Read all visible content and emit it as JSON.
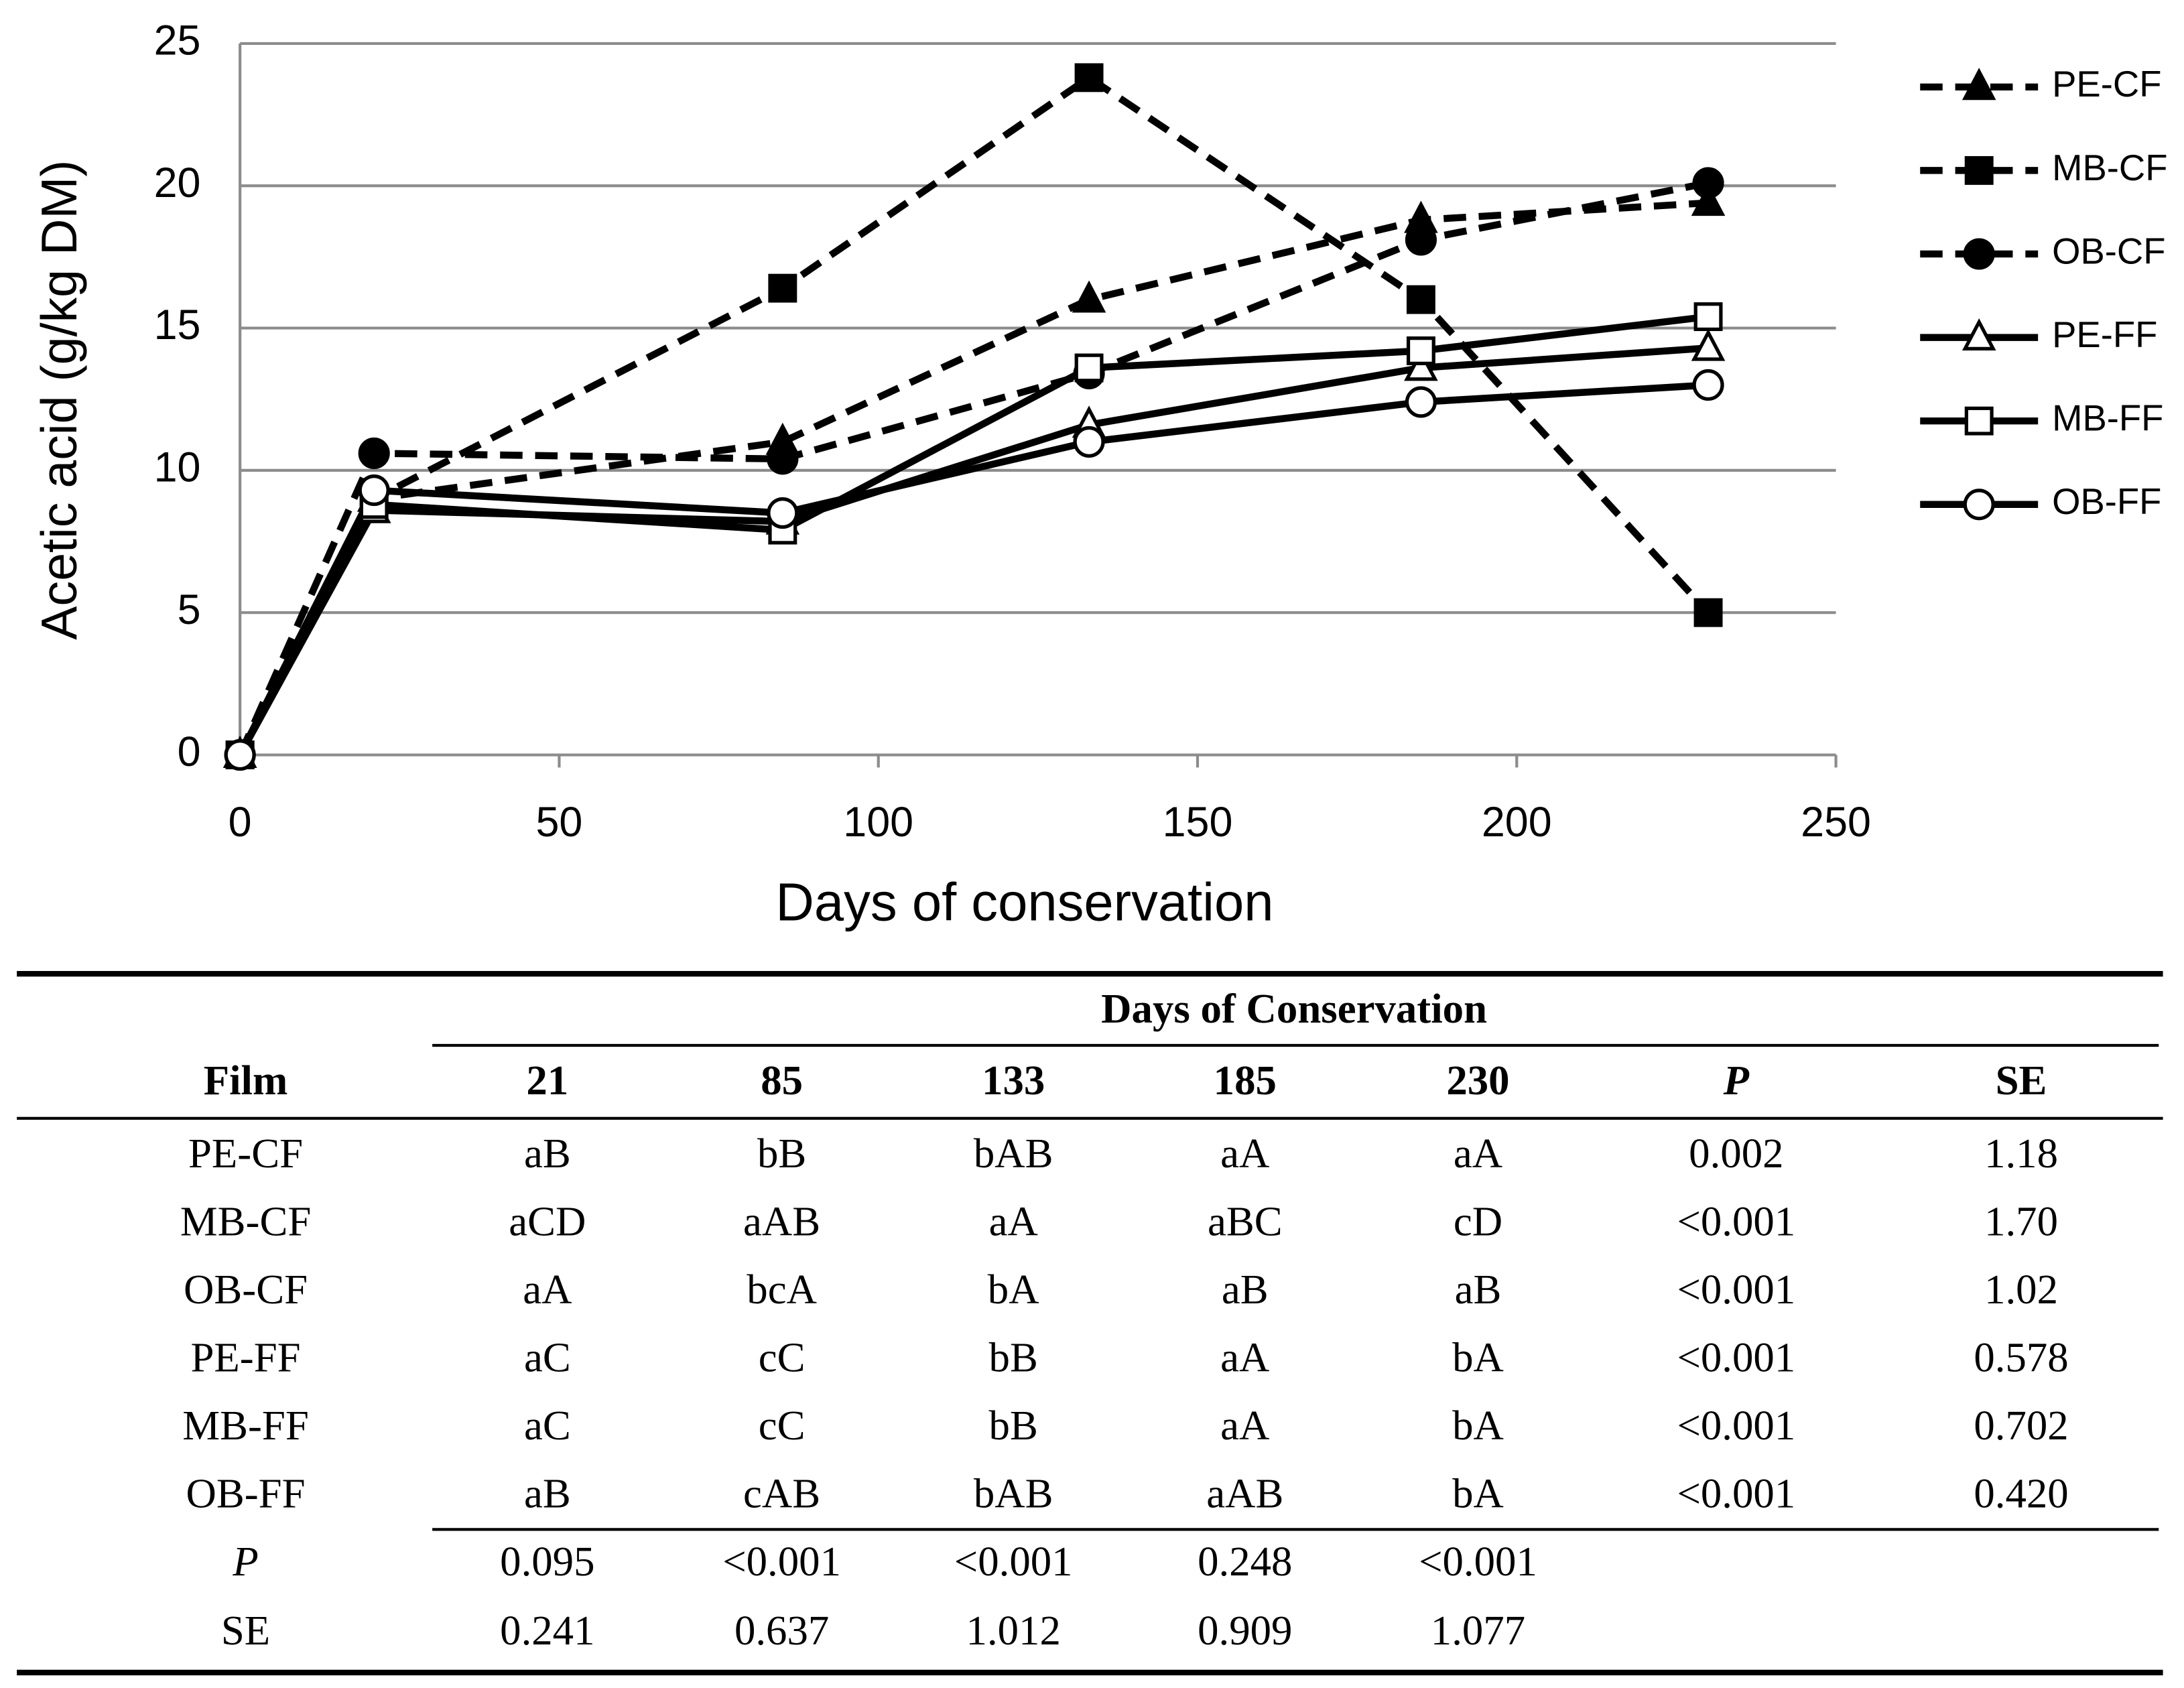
{
  "chart_data": {
    "type": "line",
    "x_label": "Days of conservation",
    "y_label": "Acetic acid (g/kg DM)",
    "x": [
      0,
      21,
      85,
      133,
      185,
      230
    ],
    "xlim": [
      0,
      250
    ],
    "xticks": [
      0,
      50,
      100,
      150,
      200,
      250
    ],
    "ylim": [
      0,
      25
    ],
    "yticks": [
      0,
      5,
      10,
      15,
      20,
      25
    ],
    "grid": true,
    "legend": "right",
    "series": [
      {
        "name": "PE-CF",
        "color": "#000000",
        "dashed": true,
        "marker": "triangle",
        "marker_fill": "#000000",
        "values": [
          0,
          9.0,
          11.0,
          16.0,
          18.8,
          19.4
        ]
      },
      {
        "name": "MB-CF",
        "color": "#000000",
        "dashed": true,
        "marker": "square",
        "marker_fill": "#000000",
        "values": [
          0,
          9.0,
          16.4,
          23.8,
          16.0,
          5.0
        ]
      },
      {
        "name": "OB-CF",
        "color": "#000000",
        "dashed": true,
        "marker": "circle",
        "marker_fill": "#000000",
        "values": [
          0,
          10.6,
          10.4,
          13.4,
          18.1,
          20.1
        ]
      },
      {
        "name": "PE-FF",
        "color": "#000000",
        "dashed": false,
        "marker": "triangle",
        "marker_fill": "#ffffff",
        "values": [
          0,
          8.6,
          8.2,
          11.6,
          13.6,
          14.3
        ]
      },
      {
        "name": "MB-FF",
        "color": "#000000",
        "dashed": false,
        "marker": "square",
        "marker_fill": "#ffffff",
        "values": [
          0,
          8.8,
          7.9,
          13.6,
          14.2,
          15.4
        ]
      },
      {
        "name": "OB-FF",
        "color": "#000000",
        "dashed": false,
        "marker": "circle",
        "marker_fill": "#ffffff",
        "values": [
          0,
          9.3,
          8.5,
          11.0,
          12.4,
          13.0
        ]
      }
    ]
  },
  "table": {
    "group_header": "Days of Conservation",
    "columns": [
      "Film",
      "21",
      "85",
      "133",
      "185",
      "230",
      "P",
      "SE"
    ],
    "rows": [
      [
        "PE-CF",
        "aB",
        "bB",
        "bAB",
        "aA",
        "aA",
        "0.002",
        "1.18"
      ],
      [
        "MB-CF",
        "aCD",
        "aAB",
        "aA",
        "aBC",
        "cD",
        "<0.001",
        "1.70"
      ],
      [
        "OB-CF",
        "aA",
        "bcA",
        "bA",
        "aB",
        "aB",
        "<0.001",
        "1.02"
      ],
      [
        "PE-FF",
        "aC",
        "cC",
        "bB",
        "aA",
        "bA",
        "<0.001",
        "0.578"
      ],
      [
        "MB-FF",
        "aC",
        "cC",
        "bB",
        "aA",
        "bA",
        "<0.001",
        "0.702"
      ],
      [
        "OB-FF",
        "aB",
        "cAB",
        "bAB",
        "aAB",
        "bA",
        "<0.001",
        "0.420"
      ]
    ],
    "footer_rows": [
      [
        "P",
        "0.095",
        "<0.001",
        "<0.001",
        "0.248",
        "<0.001"
      ],
      [
        "SE",
        "0.241",
        "0.637",
        "1.012",
        "0.909",
        "1.077"
      ]
    ]
  }
}
